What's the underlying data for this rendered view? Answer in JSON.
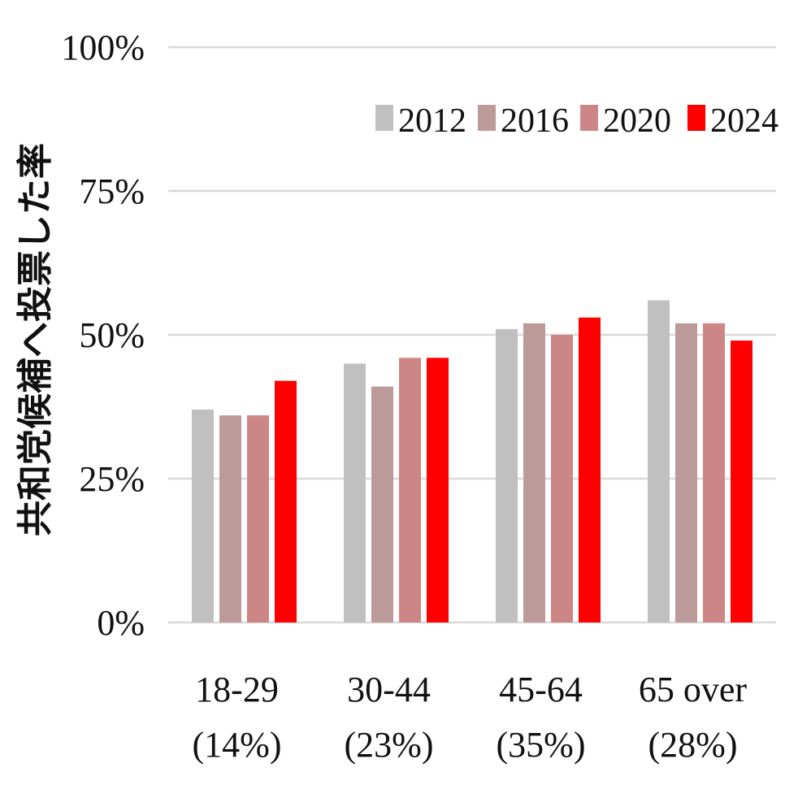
{
  "chart_data": {
    "type": "bar",
    "title": "",
    "ylabel": "共和党候補へ投票した率",
    "xlabel": "",
    "ylim": [
      0,
      100
    ],
    "yticks": [
      0,
      25,
      50,
      75,
      100
    ],
    "ytick_labels": [
      "0%",
      "25%",
      "50%",
      "75%",
      "100%"
    ],
    "categories": [
      [
        "18-29",
        "(14%)"
      ],
      [
        "30-44",
        "(23%)"
      ],
      [
        "45-64",
        "(35%)"
      ],
      [
        "65 over",
        "(28%)"
      ]
    ],
    "series": [
      {
        "name": "2012",
        "color": "#c0c0c0",
        "values": [
          37,
          45,
          51,
          56
        ]
      },
      {
        "name": "2016",
        "color": "#bc9a9a",
        "values": [
          36,
          41,
          52,
          52
        ]
      },
      {
        "name": "2020",
        "color": "#cd8686",
        "values": [
          36,
          46,
          50,
          52
        ]
      },
      {
        "name": "2024",
        "color": "#ff0000",
        "values": [
          42,
          46,
          53,
          49
        ]
      }
    ],
    "grid": true,
    "legend_position": "top-right"
  }
}
